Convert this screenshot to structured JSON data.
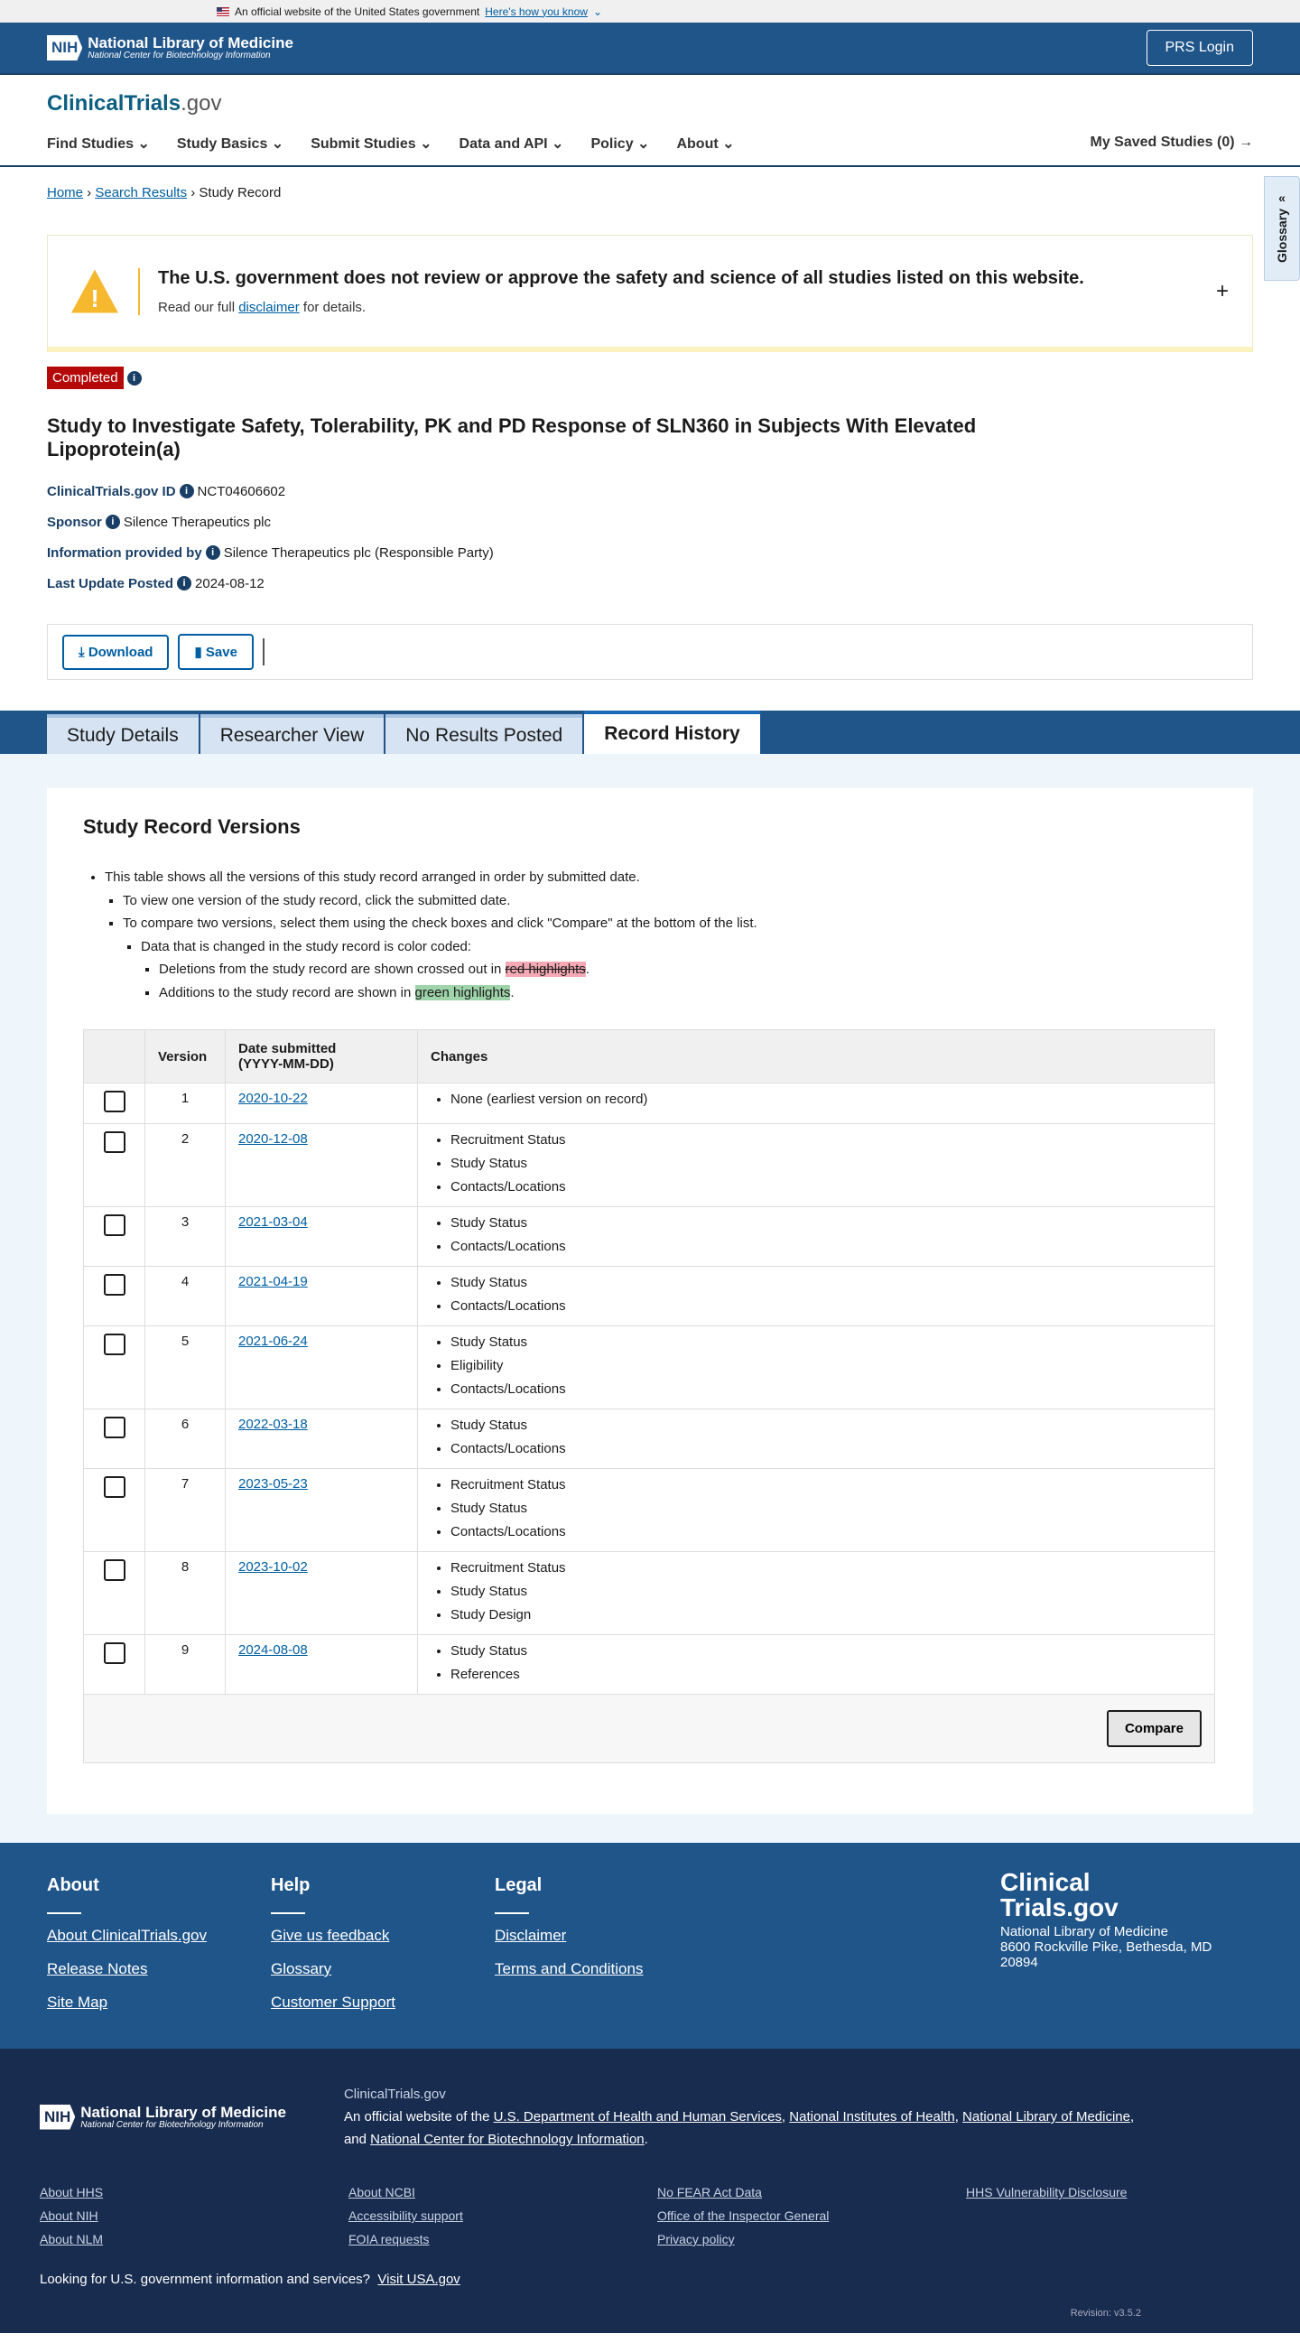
{
  "gov_banner": {
    "text": "An official website of the United States government",
    "link": "Here's how you know"
  },
  "nih": {
    "box": "NIH",
    "title": "National Library of Medicine",
    "subtitle": "National Center for Biotechnology Information",
    "login": "PRS Login"
  },
  "site": {
    "brand_main": "ClinicalTrials",
    "brand_suffix": ".gov",
    "nav": [
      "Find Studies",
      "Study Basics",
      "Submit Studies",
      "Data and API",
      "Policy",
      "About"
    ],
    "saved": "My Saved Studies (0)"
  },
  "breadcrumb": [
    "Home",
    "Search Results",
    "Study Record"
  ],
  "glossary": "Glossary",
  "disclaimer": {
    "title": "The U.S. government does not review or approve the safety and science of all studies listed on this website.",
    "pre": "Read our full ",
    "link": "disclaimer",
    "post": " for details."
  },
  "study": {
    "status": "Completed",
    "status_color": "#b50909",
    "title": "Study to Investigate Safety, Tolerability, PK and PD Response of SLN360 in Subjects With Elevated Lipoprotein(a)",
    "meta": [
      {
        "label": "ClinicalTrials.gov ID",
        "value": "NCT04606602"
      },
      {
        "label": "Sponsor",
        "value": "Silence Therapeutics plc"
      },
      {
        "label": "Information provided by",
        "value": "Silence Therapeutics plc (Responsible Party)"
      },
      {
        "label": "Last Update Posted",
        "value": "2024-08-12"
      }
    ],
    "download": "Download",
    "save": "Save"
  },
  "tabs": [
    {
      "label": "Study Details"
    },
    {
      "label": "Researcher View"
    },
    {
      "label": "No Results Posted"
    },
    {
      "label": "Record History",
      "active": true
    }
  ],
  "versions": {
    "heading": "Study Record Versions",
    "notes": [
      "This table shows all the versions of this study record arranged in order by submitted date.",
      "To view one version of the study record, click the submitted date.",
      "To compare two versions, select them using the check boxes and click \"Compare\" at the bottom of the list.",
      "Data that is changed in the study record is color coded:",
      "Deletions from the study record are shown crossed out in ",
      "red highlights",
      "Additions to the study record are shown in ",
      "green highlights"
    ],
    "columns": [
      "",
      "Version",
      "Date submitted",
      "(YYYY-MM-DD)",
      "Changes"
    ],
    "rows": [
      {
        "version": "1",
        "date": "2020-10-22",
        "changes": [
          "None (earliest version on record)"
        ]
      },
      {
        "version": "2",
        "date": "2020-12-08",
        "changes": [
          "Recruitment Status",
          "Study Status",
          "Contacts/Locations"
        ]
      },
      {
        "version": "3",
        "date": "2021-03-04",
        "changes": [
          "Study Status",
          "Contacts/Locations"
        ]
      },
      {
        "version": "4",
        "date": "2021-04-19",
        "changes": [
          "Study Status",
          "Contacts/Locations"
        ]
      },
      {
        "version": "5",
        "date": "2021-06-24",
        "changes": [
          "Study Status",
          "Eligibility",
          "Contacts/Locations"
        ]
      },
      {
        "version": "6",
        "date": "2022-03-18",
        "changes": [
          "Study Status",
          "Contacts/Locations"
        ]
      },
      {
        "version": "7",
        "date": "2023-05-23",
        "changes": [
          "Recruitment Status",
          "Study Status",
          "Contacts/Locations"
        ]
      },
      {
        "version": "8",
        "date": "2023-10-02",
        "changes": [
          "Recruitment Status",
          "Study Status",
          "Study Design"
        ]
      },
      {
        "version": "9",
        "date": "2024-08-08",
        "changes": [
          "Study Status",
          "References"
        ]
      }
    ],
    "compare": "Compare"
  },
  "footer": {
    "cols": [
      {
        "title": "About",
        "links": [
          "About ClinicalTrials.gov",
          "Release Notes",
          "Site Map"
        ]
      },
      {
        "title": "Help",
        "links": [
          "Give us feedback",
          "Glossary",
          "Customer Support"
        ]
      },
      {
        "title": "Legal",
        "links": [
          "Disclaimer",
          "Terms and Conditions"
        ]
      }
    ],
    "brand": [
      "Clinical",
      "Trials.gov"
    ],
    "address": [
      "National Library of Medicine",
      "8600 Rockville Pike, Bethesda, MD",
      "20894"
    ]
  },
  "footer2": {
    "site": "ClinicalTrials.gov",
    "official_pre": "An official website of the ",
    "links_inline": [
      "U.S. Department of Health and Human Services",
      "National Institutes of Health",
      "National Library of Medicine",
      "National Center for Biotechnology Information"
    ],
    "and": "and ",
    "grid": [
      "About HHS",
      "About NCBI",
      "No FEAR Act Data",
      "HHS Vulnerability Disclosure",
      "About NIH",
      "Accessibility support",
      "Office of the Inspector General",
      "",
      "About NLM",
      "FOIA requests",
      "Privacy policy",
      ""
    ],
    "usa_q": "Looking for U.S. government information and services?",
    "usa_link": "Visit USA.gov",
    "revision": "Revision: v3.5.2"
  }
}
